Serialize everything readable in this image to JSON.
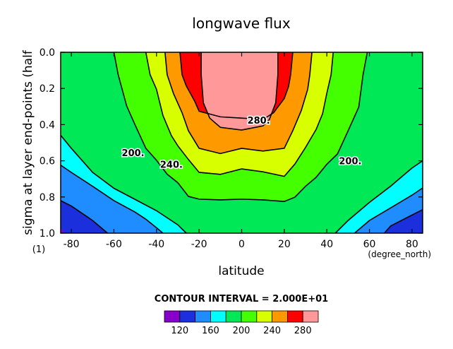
{
  "chart_data": {
    "type": "heatmap",
    "title": "longwave flux",
    "xlabel": "latitude",
    "x_units": "(degree_north)",
    "ylabel": "sigma at layer end-points (half",
    "y_units": "(1)",
    "xlim": [
      -85,
      85
    ],
    "ylim": [
      0.0,
      1.0
    ],
    "y_inverted": true,
    "x_ticks": [
      "-80",
      "-60",
      "-40",
      "-20",
      "0",
      "20",
      "40",
      "60",
      "80"
    ],
    "x_tick_values": [
      -80,
      -60,
      -40,
      -20,
      0,
      20,
      40,
      60,
      80
    ],
    "y_ticks": [
      "0.0",
      "0.2",
      "0.4",
      "0.6",
      "0.8",
      "1.0"
    ],
    "y_tick_values": [
      0.0,
      0.2,
      0.4,
      0.6,
      0.8,
      1.0
    ],
    "contour_interval_text": "CONTOUR INTERVAL = 2.000E+01",
    "contour_labels": [
      {
        "text": "200.",
        "lat": -51,
        "sigma": 0.555
      },
      {
        "text": "240.",
        "lat": -33,
        "sigma": 0.62
      },
      {
        "text": "280.",
        "lat": 8,
        "sigma": 0.375
      },
      {
        "text": "200.",
        "lat": 51,
        "sigma": 0.6
      }
    ],
    "levels": [
      120,
      140,
      160,
      180,
      200,
      220,
      240,
      260,
      280,
      300
    ],
    "colorbar_tick_labels": [
      "120",
      "160",
      "200",
      "240",
      "280"
    ],
    "bands": [
      {
        "range": [
          100,
          120
        ],
        "color": "#8800cc"
      },
      {
        "range": [
          120,
          140
        ],
        "color": "#1c2fdc"
      },
      {
        "range": [
          140,
          160
        ],
        "color": "#1f8cff"
      },
      {
        "range": [
          160,
          180
        ],
        "color": "#00ffff"
      },
      {
        "range": [
          180,
          200
        ],
        "color": "#00e855"
      },
      {
        "range": [
          200,
          220
        ],
        "color": "#44ff00"
      },
      {
        "range": [
          220,
          240
        ],
        "color": "#d8ff00"
      },
      {
        "range": [
          240,
          260
        ],
        "color": "#ff9900"
      },
      {
        "range": [
          260,
          280
        ],
        "color": "#ff0000"
      },
      {
        "range": [
          280,
          300
        ],
        "color": "#ff9999"
      }
    ],
    "contours": [
      {
        "level": 160,
        "points": [
          [
            -85,
            0.624
          ],
          [
            -80,
            0.664
          ],
          [
            -70,
            0.741
          ],
          [
            -60,
            0.82
          ],
          [
            -50,
            0.884
          ],
          [
            -45,
            0.923
          ],
          [
            -40,
            0.97
          ],
          [
            -37,
            1.0
          ]
        ]
      },
      {
        "level": 180,
        "points": [
          [
            -85,
            0.459
          ],
          [
            -80,
            0.531
          ],
          [
            -70,
            0.664
          ],
          [
            -60,
            0.752
          ],
          [
            -50,
            0.814
          ],
          [
            -40,
            0.876
          ],
          [
            -30,
            0.954
          ],
          [
            -26,
            1.0
          ]
        ]
      },
      {
        "level": 200,
        "points": [
          [
            -60,
            0.0
          ],
          [
            -58,
            0.124
          ],
          [
            -54,
            0.297
          ],
          [
            -50,
            0.403
          ],
          [
            -45,
            0.531
          ],
          [
            -40,
            0.597
          ],
          [
            -35,
            0.674
          ],
          [
            -30,
            0.721
          ],
          [
            -25,
            0.797
          ],
          [
            -20,
            0.812
          ],
          [
            -10,
            0.816
          ],
          [
            0,
            0.812
          ],
          [
            10,
            0.816
          ],
          [
            20,
            0.825
          ],
          [
            25,
            0.801
          ],
          [
            30,
            0.741
          ],
          [
            35,
            0.691
          ],
          [
            40,
            0.619
          ],
          [
            45,
            0.562
          ],
          [
            50,
            0.434
          ],
          [
            55,
            0.303
          ],
          [
            57,
            0.124
          ],
          [
            59,
            0.0
          ]
        ]
      },
      {
        "level": 220,
        "points": [
          [
            -45,
            0.0
          ],
          [
            -43,
            0.124
          ],
          [
            -40,
            0.205
          ],
          [
            -37,
            0.349
          ],
          [
            -33,
            0.461
          ],
          [
            -30,
            0.517
          ],
          [
            -25,
            0.593
          ],
          [
            -20,
            0.664
          ],
          [
            -10,
            0.675
          ],
          [
            0,
            0.645
          ],
          [
            10,
            0.661
          ],
          [
            20,
            0.686
          ],
          [
            25,
            0.618
          ],
          [
            30,
            0.526
          ],
          [
            35,
            0.426
          ],
          [
            38,
            0.34
          ],
          [
            40,
            0.226
          ],
          [
            42,
            0.124
          ],
          [
            43,
            0.0
          ]
        ]
      },
      {
        "level": 240,
        "points": [
          [
            -36,
            0.0
          ],
          [
            -35,
            0.124
          ],
          [
            -32,
            0.229
          ],
          [
            -28,
            0.334
          ],
          [
            -25,
            0.434
          ],
          [
            -20,
            0.531
          ],
          [
            -10,
            0.56
          ],
          [
            0,
            0.531
          ],
          [
            10,
            0.546
          ],
          [
            20,
            0.531
          ],
          [
            24,
            0.434
          ],
          [
            28,
            0.322
          ],
          [
            31,
            0.205
          ],
          [
            32,
            0.124
          ],
          [
            33,
            0.0
          ]
        ]
      },
      {
        "level": 260,
        "points": [
          [
            -29,
            0.0
          ],
          [
            -28,
            0.124
          ],
          [
            -26,
            0.186
          ],
          [
            -22,
            0.272
          ],
          [
            -20,
            0.326
          ],
          [
            -10,
            0.357
          ],
          [
            0,
            0.364
          ],
          [
            10,
            0.372
          ],
          [
            15,
            0.334
          ],
          [
            20,
            0.256
          ],
          [
            22,
            0.19
          ],
          [
            23,
            0.124
          ],
          [
            24,
            0.0
          ]
        ]
      },
      {
        "level": 280,
        "points": [
          [
            -19,
            0.0
          ],
          [
            -19,
            0.124
          ],
          [
            -18,
            0.279
          ],
          [
            -15,
            0.364
          ],
          [
            -10,
            0.415
          ],
          [
            0,
            0.43
          ],
          [
            10,
            0.407
          ],
          [
            13,
            0.372
          ],
          [
            16,
            0.279
          ],
          [
            17,
            0.124
          ],
          [
            17,
            0.0
          ]
        ]
      }
    ]
  }
}
